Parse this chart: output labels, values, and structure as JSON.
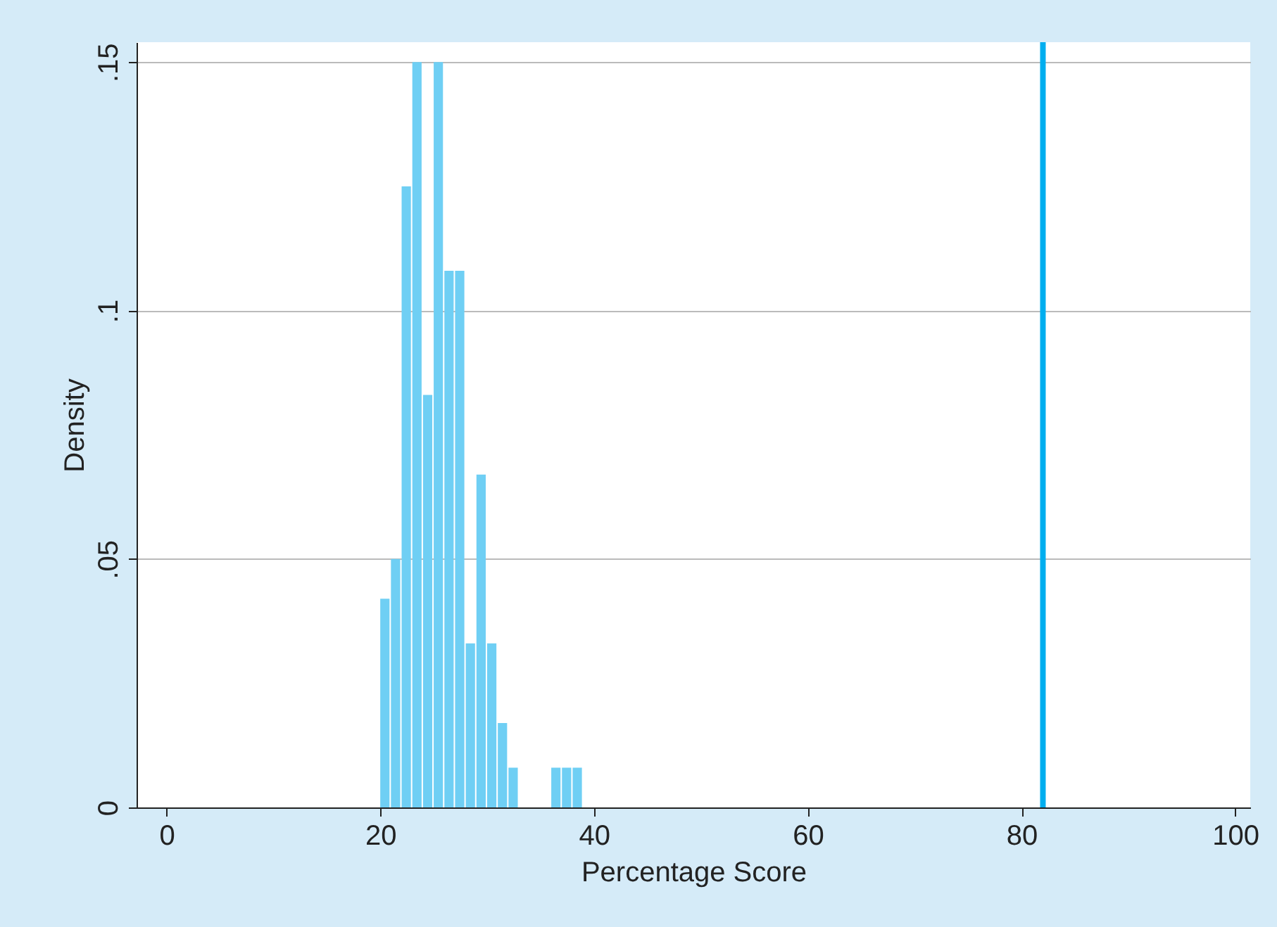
{
  "chart_data": {
    "type": "histogram",
    "xlabel": "Percentage Score",
    "ylabel": "Density",
    "bins": [
      20,
      21,
      22,
      23,
      24,
      25,
      26,
      27,
      28,
      29,
      30,
      31,
      32,
      33,
      34,
      35,
      36,
      37,
      38,
      39
    ],
    "values": [
      0.042,
      0.05,
      0.125,
      0.15,
      0.083,
      0.15,
      0.108,
      0.108,
      0.033,
      0.067,
      0.033,
      0.017,
      0.008,
      0,
      0,
      0,
      0.008,
      0.008,
      0.008
    ],
    "color": "#6fcff4",
    "xlim": [
      -2.8,
      101.4
    ],
    "xticks": [
      0,
      20,
      40,
      60,
      80,
      100
    ],
    "ylim": [
      0,
      0.154
    ],
    "yticks": [
      {
        "value": 0,
        "label": "0"
      },
      {
        "value": 0.05,
        "label": ".05"
      },
      {
        "value": 0.1,
        "label": ".1"
      },
      {
        "value": 0.15,
        "label": ".15"
      }
    ],
    "grid": "y",
    "ref_lines": [
      {
        "axis": "x",
        "value": 82,
        "color": "#00aeef"
      }
    ]
  }
}
